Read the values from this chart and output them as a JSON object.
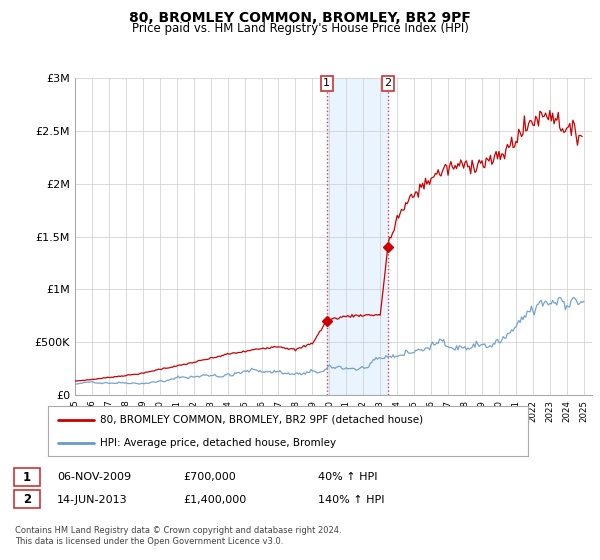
{
  "title": "80, BROMLEY COMMON, BROMLEY, BR2 9PF",
  "subtitle": "Price paid vs. HM Land Registry's House Price Index (HPI)",
  "title_fontsize": 10,
  "subtitle_fontsize": 8.5,
  "ylim": [
    0,
    3000000
  ],
  "yticks": [
    0,
    500000,
    1000000,
    1500000,
    2000000,
    2500000,
    3000000
  ],
  "ytick_labels": [
    "£0",
    "£500K",
    "£1M",
    "£1.5M",
    "£2M",
    "£2.5M",
    "£3M"
  ],
  "sale1_x": 2009.85,
  "sale1_y": 700000,
  "sale2_x": 2013.45,
  "sale2_y": 1400000,
  "shade_color": "#ddeeff",
  "shade_alpha": 0.6,
  "vline_color": "#dd4444",
  "red_line_color": "#cc0000",
  "blue_line_color": "#6699cc",
  "legend1_label": "80, BROMLEY COMMON, BROMLEY, BR2 9PF (detached house)",
  "legend2_label": "HPI: Average price, detached house, Bromley",
  "table_row1": [
    "1",
    "06-NOV-2009",
    "£700,000",
    "40% ↑ HPI"
  ],
  "table_row2": [
    "2",
    "14-JUN-2013",
    "£1,400,000",
    "140% ↑ HPI"
  ],
  "footer": "Contains HM Land Registry data © Crown copyright and database right 2024.\nThis data is licensed under the Open Government Licence v3.0.",
  "background_color": "#ffffff",
  "grid_color": "#cccccc",
  "xmin": 1995.0,
  "xmax": 2025.5
}
